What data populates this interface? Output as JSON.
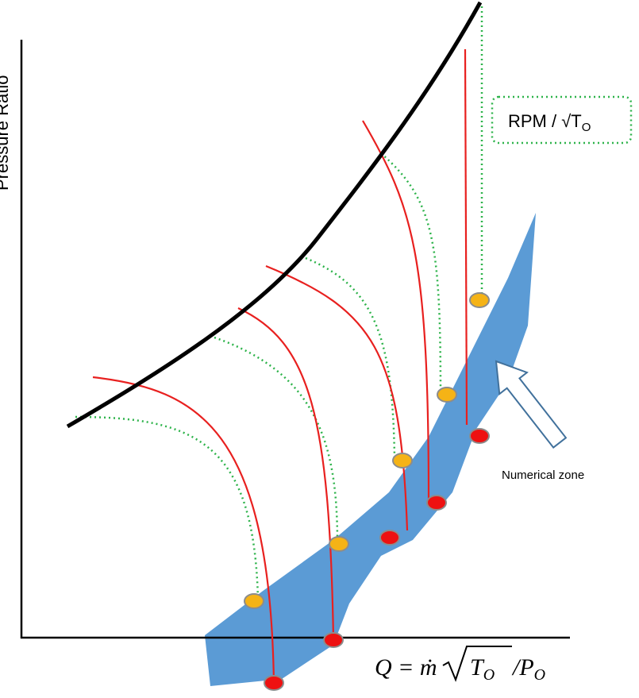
{
  "y_axis_label": "Pressure Ratio",
  "legend": {
    "text": "RPM / √T",
    "subscript": "O"
  },
  "zone_label": "Numerical zone",
  "x_axis_label": {
    "lead": "Q = ṁ",
    "root": "T",
    "root_sub": "O",
    "divide": "/P",
    "divide_sub": "O"
  }
}
